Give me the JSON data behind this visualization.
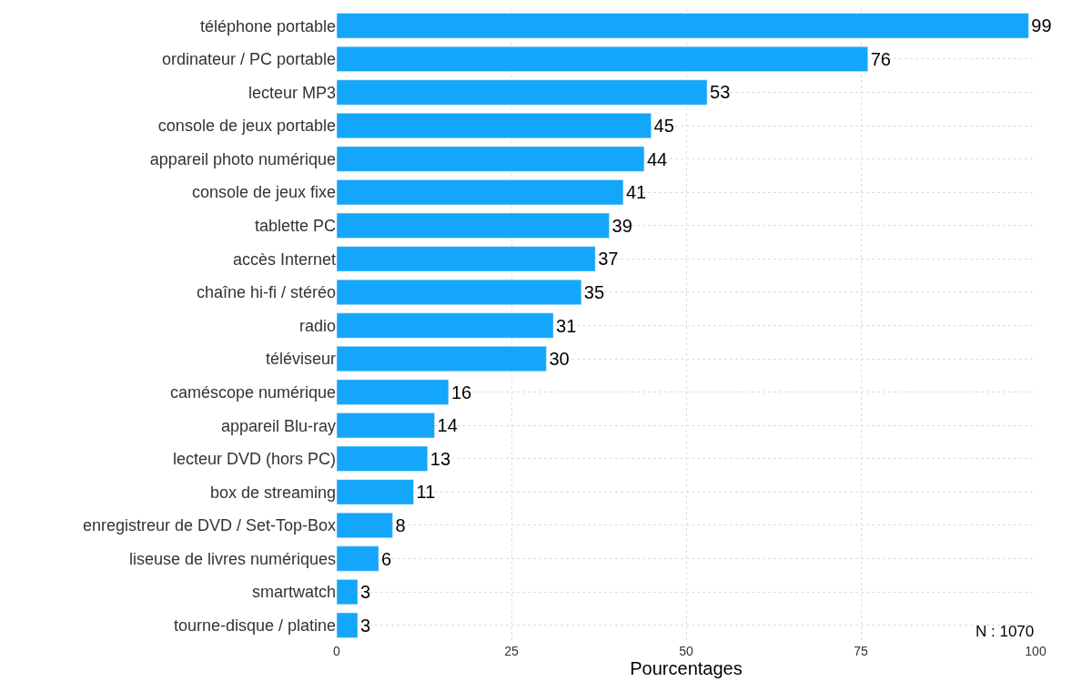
{
  "chart_data": {
    "type": "bar",
    "orientation": "horizontal",
    "xlabel": "Pourcentages",
    "categories": [
      "téléphone portable",
      "ordinateur / PC portable",
      "lecteur MP3",
      "console de jeux portable",
      "appareil photo numérique",
      "console de jeux fixe",
      "tablette PC",
      "accès Internet",
      "chaîne hi-fi / stéréo",
      "radio",
      "téléviseur",
      "caméscope numérique",
      "appareil Blu-ray",
      "lecteur DVD (hors PC)",
      "box de streaming",
      "enregistreur de DVD / Set-Top-Box",
      "liseuse de livres numériques",
      "smartwatch",
      "tourne-disque / platine"
    ],
    "values": [
      99,
      76,
      53,
      45,
      44,
      41,
      39,
      37,
      35,
      31,
      30,
      16,
      14,
      13,
      11,
      8,
      6,
      3,
      3
    ],
    "color": "#14a6fa",
    "data_labels": true,
    "xlim": [
      0,
      100
    ],
    "xticks": [
      0,
      25,
      50,
      75,
      100
    ],
    "grid": true,
    "annotations": [
      "N : 1070"
    ]
  }
}
